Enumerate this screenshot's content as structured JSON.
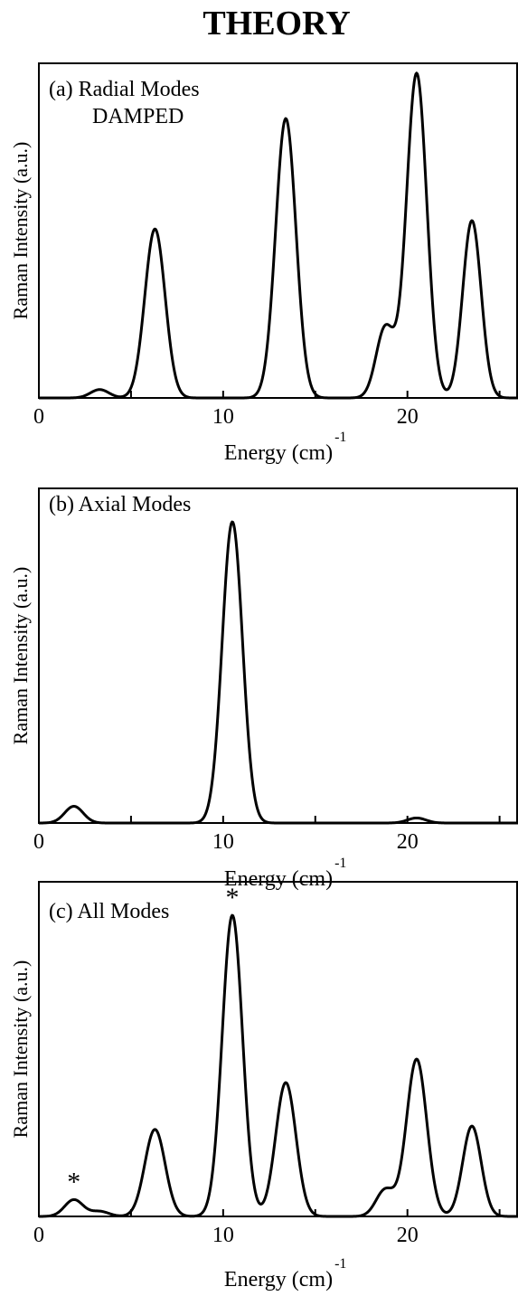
{
  "figure_title": "THEORY",
  "chart_data": [
    {
      "type": "line",
      "panel_title": "(a) Radial Modes",
      "panel_subtitle": "DAMPED",
      "xlabel": "Energy  (cm)",
      "xlabel_sup": "-1",
      "ylabel": "Raman Intensity (a.u.)",
      "xlim": [
        0,
        26
      ],
      "ylim": [
        0,
        1.0
      ],
      "xticks": [
        0,
        10,
        20
      ],
      "minor_xticks": [
        5,
        15,
        25
      ],
      "peaks": [
        {
          "center": 3.3,
          "height": 0.025,
          "width": 0.5
        },
        {
          "center": 6.3,
          "height": 0.505,
          "width": 0.55
        },
        {
          "center": 13.4,
          "height": 0.835,
          "width": 0.55
        },
        {
          "center": 18.8,
          "height": 0.21,
          "width": 0.5
        },
        {
          "center": 20.5,
          "height": 0.97,
          "width": 0.55
        },
        {
          "center": 23.5,
          "height": 0.53,
          "width": 0.5
        }
      ],
      "annotations": []
    },
    {
      "type": "line",
      "panel_title": "(b) Axial Modes",
      "panel_subtitle": "",
      "xlabel": "Energy (cm)",
      "xlabel_sup": "-1",
      "ylabel": "Raman Intensity (a.u.)",
      "xlim": [
        0,
        26
      ],
      "ylim": [
        0,
        1.0
      ],
      "xticks": [
        0,
        10,
        20
      ],
      "minor_xticks": [
        5,
        15,
        25
      ],
      "peaks": [
        {
          "center": 1.9,
          "height": 0.05,
          "width": 0.5
        },
        {
          "center": 10.5,
          "height": 0.9,
          "width": 0.55
        },
        {
          "center": 20.5,
          "height": 0.015,
          "width": 0.5
        }
      ],
      "annotations": []
    },
    {
      "type": "line",
      "panel_title": "(c) All Modes",
      "panel_subtitle": "",
      "xlabel": "Energy (cm)",
      "xlabel_sup": "-1",
      "ylabel": "Raman Intensity (a.u.)",
      "xlim": [
        0,
        26
      ],
      "ylim": [
        0,
        1.0
      ],
      "xticks": [
        0,
        10,
        20
      ],
      "minor_xticks": [
        5,
        15,
        25
      ],
      "peaks": [
        {
          "center": 1.9,
          "height": 0.05,
          "width": 0.5
        },
        {
          "center": 3.3,
          "height": 0.015,
          "width": 0.5
        },
        {
          "center": 6.3,
          "height": 0.26,
          "width": 0.55
        },
        {
          "center": 10.5,
          "height": 0.9,
          "width": 0.55
        },
        {
          "center": 13.4,
          "height": 0.4,
          "width": 0.55
        },
        {
          "center": 18.8,
          "height": 0.08,
          "width": 0.5
        },
        {
          "center": 20.5,
          "height": 0.47,
          "width": 0.55
        },
        {
          "center": 23.5,
          "height": 0.27,
          "width": 0.5
        }
      ],
      "annotations": [
        {
          "text": "*",
          "x": 1.9,
          "y": 0.05
        },
        {
          "text": "*",
          "x": 10.5,
          "y": 0.9
        }
      ]
    }
  ]
}
